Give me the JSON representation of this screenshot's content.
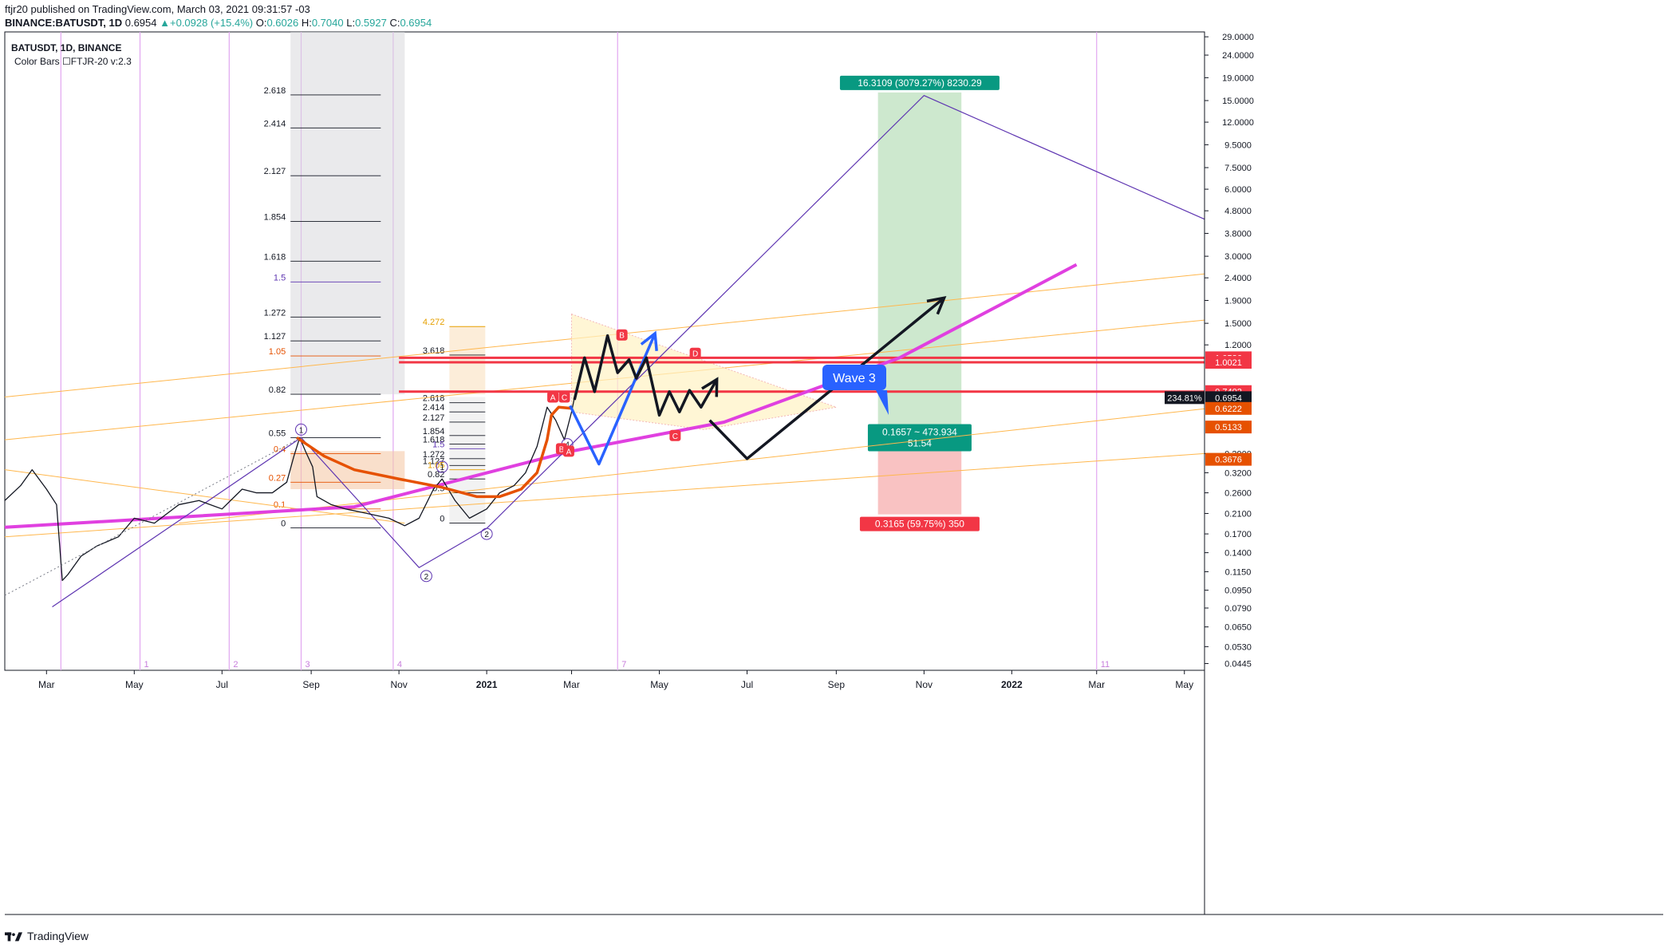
{
  "header": {
    "publisher": "ftjr20 published on TradingView.com, March 03, 2021 09:31:57 -03",
    "symbol": "BINANCE:BATUSDT, 1D",
    "last": "0.6954",
    "change": "+0.0928 (+15.4%)",
    "open_label": "O:",
    "open": "0.6026",
    "high_label": "H:",
    "high": "0.7040",
    "low_label": "L:",
    "low": "0.5927",
    "close_label": "C:",
    "close": "0.6954"
  },
  "legend": {
    "title": "BATUSDT, 1D, BINANCE",
    "indicator": "Color Bars ☐FTJR-20 v:2.3"
  },
  "footer": {
    "brand": "TradingView"
  },
  "colors": {
    "magenta_trend": "#e040e0",
    "red_level": "#f23645",
    "orange_ma": "#e65100",
    "orange_channel": "#ffb74d",
    "purple_path": "#5e35b1",
    "blue_wave": "#2962ff",
    "green_zone": "#c8e6c9",
    "red_zone": "#f8bbbb",
    "period_line": "#e1a6f0"
  },
  "chart_data": {
    "type": "line",
    "title": "BATUSDT, 1D, BINANCE",
    "xlabel": "",
    "ylabel": "",
    "y_scale": "log",
    "ylim": [
      0.0415,
      30.5
    ],
    "x_range": [
      "2020-02-01",
      "2022-05-15"
    ],
    "x_ticks": [
      {
        "date": "2020-03-01",
        "label": "Mar"
      },
      {
        "date": "2020-05-01",
        "label": "May"
      },
      {
        "date": "2020-07-01",
        "label": "Jul"
      },
      {
        "date": "2020-09-01",
        "label": "Sep"
      },
      {
        "date": "2020-11-01",
        "label": "Nov"
      },
      {
        "date": "2021-01-01",
        "label": "2021"
      },
      {
        "date": "2021-03-01",
        "label": "Mar"
      },
      {
        "date": "2021-05-01",
        "label": "May"
      },
      {
        "date": "2021-07-01",
        "label": "Jul"
      },
      {
        "date": "2021-09-01",
        "label": "Sep"
      },
      {
        "date": "2021-11-01",
        "label": "Nov"
      },
      {
        "date": "2022-01-01",
        "label": "2022"
      },
      {
        "date": "2022-03-01",
        "label": "Mar"
      },
      {
        "date": "2022-05-01",
        "label": "May"
      }
    ],
    "y_ticks": [
      {
        "value": 29.0,
        "label": "29.0000"
      },
      {
        "value": 24.0,
        "label": "24.0000"
      },
      {
        "value": 19.0,
        "label": "19.0000"
      },
      {
        "value": 15.0,
        "label": "15.0000"
      },
      {
        "value": 12.0,
        "label": "12.0000"
      },
      {
        "value": 9.5,
        "label": "9.5000"
      },
      {
        "value": 7.5,
        "label": "7.5000"
      },
      {
        "value": 6.0,
        "label": "6.0000"
      },
      {
        "value": 4.8,
        "label": "4.8000"
      },
      {
        "value": 3.8,
        "label": "3.8000"
      },
      {
        "value": 3.0,
        "label": "3.0000"
      },
      {
        "value": 2.4,
        "label": "2.4000"
      },
      {
        "value": 1.9,
        "label": "1.9000"
      },
      {
        "value": 1.5,
        "label": "1.5000"
      },
      {
        "value": 1.2,
        "label": "1.2000"
      },
      {
        "value": 0.39,
        "label": "0.3900"
      },
      {
        "value": 0.32,
        "label": "0.3200"
      },
      {
        "value": 0.26,
        "label": "0.2600"
      },
      {
        "value": 0.21,
        "label": "0.2100"
      },
      {
        "value": 0.17,
        "label": "0.1700"
      },
      {
        "value": 0.14,
        "label": "0.1400"
      },
      {
        "value": 0.115,
        "label": "0.1150"
      },
      {
        "value": 0.095,
        "label": "0.0950"
      },
      {
        "value": 0.079,
        "label": "0.0790"
      },
      {
        "value": 0.065,
        "label": "0.0650"
      },
      {
        "value": 0.053,
        "label": "0.0530"
      },
      {
        "value": 0.0445,
        "label": "0.0445"
      }
    ],
    "price_labels": [
      {
        "value": 1.05,
        "label": "1.0536",
        "color": "#f23645"
      },
      {
        "value": 1.0021,
        "label": "1.0021",
        "color": "#f23645"
      },
      {
        "value": 0.7402,
        "label": "0.7402",
        "color": "#f23645"
      },
      {
        "value": 0.6954,
        "label": "0.6954",
        "color": "#131722",
        "tag": "234.81%"
      },
      {
        "value": 0.6222,
        "label": "0.6222",
        "color": "#e65100"
      },
      {
        "value": 0.5133,
        "label": "0.5133",
        "color": "#e65100"
      },
      {
        "value": 0.3676,
        "label": "0.3676",
        "color": "#e65100"
      }
    ],
    "period_lines": [
      {
        "date": "2020-03-11",
        "label": ""
      },
      {
        "date": "2020-05-05",
        "label": "1"
      },
      {
        "date": "2020-07-06",
        "label": "2"
      },
      {
        "date": "2020-08-25",
        "label": "3"
      },
      {
        "date": "2020-10-28",
        "label": "4"
      },
      {
        "date": "2021-04-02",
        "label": "7"
      },
      {
        "date": "2022-03-01",
        "label": "11"
      }
    ],
    "fib_left": {
      "date_from": "2020-08-01",
      "date_to": "2020-11-05",
      "levels": [
        {
          "label": "2.618",
          "value": 15.9
        },
        {
          "label": "2.414",
          "value": 11.3
        },
        {
          "label": "2.127",
          "value": 6.9
        },
        {
          "label": "1.854",
          "value": 4.3
        },
        {
          "label": "1.618",
          "value": 2.85
        },
        {
          "label": "1.5",
          "value": 2.3
        },
        {
          "label": "1.272",
          "value": 1.6
        },
        {
          "label": "1.127",
          "value": 1.25
        },
        {
          "label": "1.05",
          "value": 1.07
        },
        {
          "label": "0.82",
          "value": 0.72
        },
        {
          "label": "0.55",
          "value": 0.46
        },
        {
          "label": "0.4",
          "value": 0.39
        },
        {
          "label": "0.27",
          "value": 0.29
        },
        {
          "label": "0.1",
          "value": 0.22
        },
        {
          "label": "0",
          "value": 0.181
        }
      ]
    },
    "fib_right": {
      "date_from": "2020-11-25",
      "date_to": "2020-12-31",
      "levels": [
        {
          "label": "4.272",
          "value": 1.45
        },
        {
          "label": "3.618",
          "value": 1.08
        },
        {
          "label": "2.618",
          "value": 0.66
        },
        {
          "label": "2.414",
          "value": 0.6
        },
        {
          "label": "2.127",
          "value": 0.54
        },
        {
          "label": "1.854",
          "value": 0.47
        },
        {
          "label": "1.618",
          "value": 0.43
        },
        {
          "label": "1.5",
          "value": 0.41
        },
        {
          "label": "1.272",
          "value": 0.37
        },
        {
          "label": "1.127",
          "value": 0.345
        },
        {
          "label": "1.05",
          "value": 0.33
        },
        {
          "label": "0.82",
          "value": 0.3
        },
        {
          "label": "0.5",
          "value": 0.26
        },
        {
          "label": "0",
          "value": 0.19
        }
      ]
    },
    "position": {
      "date_from": "2021-09-30",
      "date_to": "2021-11-27",
      "entry": 0.52,
      "target": 16.3109,
      "stop": 0.208,
      "target_label": "16.3109 (3079.27%) 8230.29",
      "ratio_label_1": "0.1657 ~ 473.934",
      "ratio_label_2": "51.54",
      "stop_label": "0.3165 (59.75%) 350"
    },
    "callout": {
      "text": "Wave 3",
      "date": "2021-04-01",
      "value": 2.15
    },
    "price_path": [
      [
        "2020-02-01",
        0.24
      ],
      [
        "2020-02-12",
        0.28
      ],
      [
        "2020-02-20",
        0.33
      ],
      [
        "2020-03-01",
        0.27
      ],
      [
        "2020-03-08",
        0.23
      ],
      [
        "2020-03-12",
        0.105
      ],
      [
        "2020-03-16",
        0.112
      ],
      [
        "2020-03-25",
        0.135
      ],
      [
        "2020-04-05",
        0.15
      ],
      [
        "2020-04-20",
        0.165
      ],
      [
        "2020-05-01",
        0.2
      ],
      [
        "2020-05-15",
        0.19
      ],
      [
        "2020-06-01",
        0.23
      ],
      [
        "2020-06-15",
        0.24
      ],
      [
        "2020-07-01",
        0.22
      ],
      [
        "2020-07-15",
        0.27
      ],
      [
        "2020-07-25",
        0.26
      ],
      [
        "2020-08-05",
        0.26
      ],
      [
        "2020-08-15",
        0.29
      ],
      [
        "2020-08-20",
        0.38
      ],
      [
        "2020-08-24",
        0.46
      ],
      [
        "2020-08-28",
        0.4
      ],
      [
        "2020-09-02",
        0.34
      ],
      [
        "2020-09-05",
        0.25
      ],
      [
        "2020-09-15",
        0.23
      ],
      [
        "2020-09-25",
        0.22
      ],
      [
        "2020-10-10",
        0.21
      ],
      [
        "2020-10-25",
        0.2
      ],
      [
        "2020-11-05",
        0.185
      ],
      [
        "2020-11-15",
        0.2
      ],
      [
        "2020-11-25",
        0.27
      ],
      [
        "2020-12-01",
        0.3
      ],
      [
        "2020-12-10",
        0.24
      ],
      [
        "2020-12-20",
        0.2
      ],
      [
        "2021-01-01",
        0.22
      ],
      [
        "2021-01-10",
        0.26
      ],
      [
        "2021-01-20",
        0.28
      ],
      [
        "2021-01-28",
        0.32
      ],
      [
        "2021-02-05",
        0.42
      ],
      [
        "2021-02-12",
        0.63
      ],
      [
        "2021-02-18",
        0.55
      ],
      [
        "2021-02-24",
        0.45
      ],
      [
        "2021-03-01",
        0.6
      ],
      [
        "2021-03-03",
        0.6954
      ]
    ],
    "moving_average": [
      [
        "2020-08-22",
        0.46
      ],
      [
        "2020-09-10",
        0.38
      ],
      [
        "2020-10-01",
        0.33
      ],
      [
        "2020-11-01",
        0.3
      ],
      [
        "2020-12-01",
        0.275
      ],
      [
        "2020-12-25",
        0.25
      ],
      [
        "2021-01-10",
        0.25
      ],
      [
        "2021-01-25",
        0.27
      ],
      [
        "2021-02-05",
        0.32
      ],
      [
        "2021-02-12",
        0.45
      ],
      [
        "2021-02-15",
        0.58
      ],
      [
        "2021-02-20",
        0.63
      ],
      [
        "2021-03-01",
        0.6222
      ]
    ],
    "trend_line": [
      [
        "2020-02-01",
        0.182
      ],
      [
        "2020-10-01",
        0.225
      ],
      [
        "2021-03-01",
        0.4
      ],
      [
        "2021-06-15",
        0.54
      ],
      [
        "2021-10-15",
        1.05
      ],
      [
        "2022-02-15",
        2.75
      ]
    ],
    "projection_black": [
      [
        "2021-03-03",
        0.68
      ],
      [
        "2021-03-10",
        1.05
      ],
      [
        "2021-03-17",
        0.74
      ],
      [
        "2021-03-26",
        1.32
      ],
      [
        "2021-04-02",
        0.9
      ],
      [
        "2021-04-10",
        1.03
      ],
      [
        "2021-04-15",
        0.85
      ],
      [
        "2021-04-22",
        1.05
      ],
      [
        "2021-05-01",
        0.58
      ],
      [
        "2021-05-08",
        0.74
      ],
      [
        "2021-05-15",
        0.6
      ],
      [
        "2021-05-22",
        0.75
      ],
      [
        "2021-05-30",
        0.63
      ],
      [
        "2021-06-10",
        0.84
      ]
    ],
    "projection_black_2": [
      [
        "2021-06-05",
        0.55
      ],
      [
        "2021-07-01",
        0.37
      ],
      [
        "2021-11-15",
        1.95
      ]
    ],
    "projection_blue": [
      [
        "2021-02-28",
        0.64
      ],
      [
        "2021-03-20",
        0.35
      ],
      [
        "2021-04-28",
        1.35
      ]
    ],
    "big_path": [
      [
        "2020-03-05",
        0.08
      ],
      [
        "2020-08-25",
        0.46
      ],
      [
        "2020-11-15",
        0.12
      ],
      [
        "2021-01-01",
        0.18
      ],
      [
        "2021-11-01",
        15.8
      ],
      [
        "2022-05-15",
        4.4
      ]
    ]
  }
}
